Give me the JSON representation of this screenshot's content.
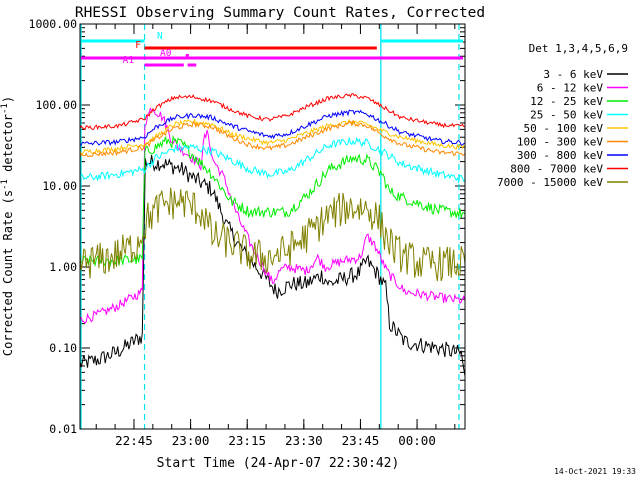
{
  "chart_data": {
    "type": "line",
    "title": "RHESSI Observing Summary Count Rates, Corrected",
    "xlabel": "Start Time (24-Apr-07 22:30:42)",
    "ylabel": "Corrected Count Rate (s⁻¹ detector⁻¹)",
    "ylabel_main": "Corrected Count Rate (s",
    "ylabel_mid": " detector",
    "ylabel_end": ")",
    "yscale": "log",
    "ylim": [
      0.01,
      1000
    ],
    "xlim_minutes": [
      0,
      102
    ],
    "y_ticks": [
      {
        "v": 0.01,
        "label": "0.01"
      },
      {
        "v": 0.1,
        "label": "0.10"
      },
      {
        "v": 1,
        "label": "1.00"
      },
      {
        "v": 10,
        "label": "10.00"
      },
      {
        "v": 100,
        "label": "100.00"
      },
      {
        "v": 1000,
        "label": "1000.00"
      }
    ],
    "x_ticks": [
      {
        "t": 14.3,
        "label": "22:45"
      },
      {
        "t": 29.3,
        "label": "23:00"
      },
      {
        "t": 44.3,
        "label": "23:15"
      },
      {
        "t": 59.3,
        "label": "23:30"
      },
      {
        "t": 74.3,
        "label": "23:45"
      },
      {
        "t": 89.3,
        "label": "00:00"
      }
    ],
    "legend_title": "Det 1,3,4,5,6,9",
    "footer_date": "14-Oct-2021 19:33",
    "series": [
      {
        "name": "3 - 6 keV",
        "color": "#000000",
        "points": [
          [
            0,
            0.063
          ],
          [
            5,
            0.072
          ],
          [
            10,
            0.09
          ],
          [
            16.5,
            0.14
          ],
          [
            17.3,
            20
          ],
          [
            22,
            19
          ],
          [
            27,
            16
          ],
          [
            30,
            12.5
          ],
          [
            35,
            9
          ],
          [
            39,
            3.2
          ],
          [
            43,
            1.6
          ],
          [
            48,
            0.85
          ],
          [
            52,
            0.5
          ],
          [
            56,
            0.62
          ],
          [
            60,
            0.62
          ],
          [
            64,
            0.8
          ],
          [
            66,
            0.62
          ],
          [
            70,
            0.72
          ],
          [
            74,
            0.85
          ],
          [
            76,
            1.2
          ],
          [
            79,
            0.8
          ],
          [
            81,
            0.55
          ],
          [
            82,
            0.2
          ],
          [
            86,
            0.12
          ],
          [
            95,
            0.1
          ],
          [
            101,
            0.085
          ],
          [
            102,
            0.045
          ]
        ]
      },
      {
        "name": "6 - 12 keV",
        "color": "#ff00ff",
        "points": [
          [
            0,
            0.22
          ],
          [
            5,
            0.26
          ],
          [
            10,
            0.33
          ],
          [
            16.5,
            0.5
          ],
          [
            17.2,
            60
          ],
          [
            19,
            95
          ],
          [
            20,
            85
          ],
          [
            22,
            70
          ],
          [
            24,
            40
          ],
          [
            26,
            30
          ],
          [
            28,
            26
          ],
          [
            32,
            18
          ],
          [
            33,
            40
          ],
          [
            34,
            45
          ],
          [
            35,
            22
          ],
          [
            38,
            13
          ],
          [
            42,
            4
          ],
          [
            46,
            1.6
          ],
          [
            51,
            0.65
          ],
          [
            53,
            0.9
          ],
          [
            55,
            1.0
          ],
          [
            60,
            0.9
          ],
          [
            63,
            1.3
          ],
          [
            65,
            1.0
          ],
          [
            70,
            1.2
          ],
          [
            74,
            1.3
          ],
          [
            75,
            1.6
          ],
          [
            76,
            2.4
          ],
          [
            78,
            1.9
          ],
          [
            80,
            1.2
          ],
          [
            81,
            0.95
          ],
          [
            82,
            0.8
          ],
          [
            86,
            0.5
          ],
          [
            95,
            0.42
          ],
          [
            102,
            0.38
          ]
        ]
      },
      {
        "name": "12 - 25 keV",
        "color": "#00ee00",
        "points": [
          [
            0,
            1.18
          ],
          [
            10,
            1.2
          ],
          [
            16.5,
            1.25
          ],
          [
            17.2,
            26
          ],
          [
            20,
            30
          ],
          [
            23,
            36
          ],
          [
            27,
            33
          ],
          [
            30,
            24
          ],
          [
            35,
            14
          ],
          [
            40,
            6.5
          ],
          [
            45,
            4.8
          ],
          [
            55,
            4.8
          ],
          [
            60,
            7.5
          ],
          [
            66,
            16
          ],
          [
            72,
            22
          ],
          [
            76,
            21
          ],
          [
            80,
            14
          ],
          [
            82,
            8.5
          ],
          [
            86,
            7
          ],
          [
            95,
            5
          ],
          [
            102,
            4.5
          ]
        ]
      },
      {
        "name": "25 - 50 keV",
        "color": "#00ffff",
        "points": [
          [
            0,
            12.5
          ],
          [
            5,
            13
          ],
          [
            10,
            14
          ],
          [
            17,
            16
          ],
          [
            20,
            22
          ],
          [
            25,
            29
          ],
          [
            30,
            30
          ],
          [
            35,
            27
          ],
          [
            40,
            21
          ],
          [
            45,
            16
          ],
          [
            50,
            14
          ],
          [
            55,
            15
          ],
          [
            60,
            21
          ],
          [
            66,
            32
          ],
          [
            72,
            36
          ],
          [
            76,
            34
          ],
          [
            80,
            27
          ],
          [
            85,
            19
          ],
          [
            95,
            14
          ],
          [
            102,
            12
          ]
        ]
      },
      {
        "name": "50 - 100 keV",
        "color": "#ffc400",
        "points": [
          [
            0,
            26
          ],
          [
            10,
            29
          ],
          [
            17,
            33
          ],
          [
            20,
            40
          ],
          [
            25,
            58
          ],
          [
            30,
            62
          ],
          [
            35,
            58
          ],
          [
            40,
            44
          ],
          [
            45,
            38
          ],
          [
            50,
            34
          ],
          [
            55,
            37
          ],
          [
            60,
            45
          ],
          [
            66,
            56
          ],
          [
            72,
            62
          ],
          [
            76,
            58
          ],
          [
            80,
            48
          ],
          [
            85,
            40
          ],
          [
            95,
            32
          ],
          [
            102,
            30
          ]
        ]
      },
      {
        "name": "100 - 300 keV",
        "color": "#ff8800",
        "points": [
          [
            0,
            24
          ],
          [
            10,
            26
          ],
          [
            17,
            30
          ],
          [
            20,
            38
          ],
          [
            25,
            52
          ],
          [
            30,
            58
          ],
          [
            35,
            54
          ],
          [
            40,
            40
          ],
          [
            45,
            32
          ],
          [
            50,
            29
          ],
          [
            55,
            32
          ],
          [
            60,
            40
          ],
          [
            66,
            52
          ],
          [
            72,
            60
          ],
          [
            76,
            56
          ],
          [
            80,
            43
          ],
          [
            85,
            33
          ],
          [
            95,
            26
          ],
          [
            102,
            25
          ]
        ]
      },
      {
        "name": "300 - 800 keV",
        "color": "#0000ff",
        "points": [
          [
            0,
            33
          ],
          [
            10,
            35
          ],
          [
            17,
            40
          ],
          [
            20,
            53
          ],
          [
            25,
            70
          ],
          [
            30,
            75
          ],
          [
            35,
            70
          ],
          [
            40,
            56
          ],
          [
            45,
            47
          ],
          [
            50,
            41
          ],
          [
            55,
            44
          ],
          [
            60,
            56
          ],
          [
            66,
            74
          ],
          [
            72,
            82
          ],
          [
            76,
            78
          ],
          [
            80,
            62
          ],
          [
            85,
            46
          ],
          [
            95,
            36
          ],
          [
            102,
            34
          ]
        ]
      },
      {
        "name": "800 - 7000 keV",
        "color": "#ff0000",
        "points": [
          [
            0,
            52
          ],
          [
            10,
            55
          ],
          [
            17,
            67
          ],
          [
            20,
            92
          ],
          [
            25,
            124
          ],
          [
            30,
            126
          ],
          [
            35,
            112
          ],
          [
            40,
            88
          ],
          [
            45,
            72
          ],
          [
            50,
            66
          ],
          [
            55,
            74
          ],
          [
            60,
            95
          ],
          [
            66,
            122
          ],
          [
            72,
            132
          ],
          [
            76,
            122
          ],
          [
            80,
            96
          ],
          [
            85,
            70
          ],
          [
            95,
            57
          ],
          [
            102,
            54
          ]
        ]
      },
      {
        "name": "7000 - 15000 keV",
        "color": "#808000",
        "points": [
          [
            0,
            1.1
          ],
          [
            8,
            1.3
          ],
          [
            15,
            1.9
          ],
          [
            18,
            4
          ],
          [
            22,
            6
          ],
          [
            27,
            6.5
          ],
          [
            31,
            5.2
          ],
          [
            33,
            4.3
          ],
          [
            35,
            2.4
          ],
          [
            40,
            2.0
          ],
          [
            45,
            1.4
          ],
          [
            50,
            1.3
          ],
          [
            55,
            1.6
          ],
          [
            60,
            2.4
          ],
          [
            66,
            4.4
          ],
          [
            71,
            5.5
          ],
          [
            76,
            5.3
          ],
          [
            79,
            4.0
          ],
          [
            81,
            2.4
          ],
          [
            84,
            1.5
          ],
          [
            90,
            1.1
          ],
          [
            102,
            1.1
          ]
        ]
      }
    ],
    "vlines_solid_minutes": [
      0,
      79.7
    ],
    "vlines_dashed_minutes": [
      17.1,
      100.4
    ],
    "flag_bars": [
      {
        "label": "N",
        "color": "#00ffff",
        "row": "N",
        "segments": [
          [
            0,
            17.1
          ],
          [
            79.7,
            102
          ]
        ]
      },
      {
        "label": "F",
        "color": "#ff0000",
        "row": "F",
        "segments": [
          [
            17.1,
            79.7
          ]
        ]
      },
      {
        "label": "A0",
        "color": "#ff00ff",
        "row": "A0",
        "segments": [
          [
            0,
            102
          ]
        ]
      },
      {
        "label": "A1",
        "color": "#ff00ff",
        "row": "A1",
        "segments": [
          [
            17.1,
            27.5
          ],
          [
            28.5,
            30.8
          ]
        ]
      }
    ]
  }
}
